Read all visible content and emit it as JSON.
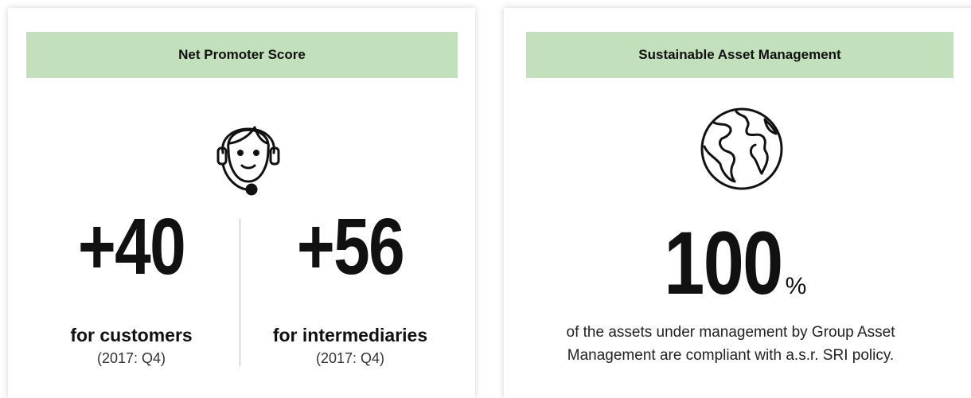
{
  "cards": [
    {
      "title": "Net Promoter Score",
      "stats": [
        {
          "value": "+40",
          "label": "for customers",
          "note": "(2017: Q4)"
        },
        {
          "value": "+56",
          "label": "for intermediaries",
          "note": "(2017: Q4)"
        }
      ]
    },
    {
      "title": "Sustainable Asset Management",
      "value": "100",
      "unit": "%",
      "description": "of the assets under management by Group Asset Management are compliant with a.s.r. SRI policy."
    }
  ]
}
